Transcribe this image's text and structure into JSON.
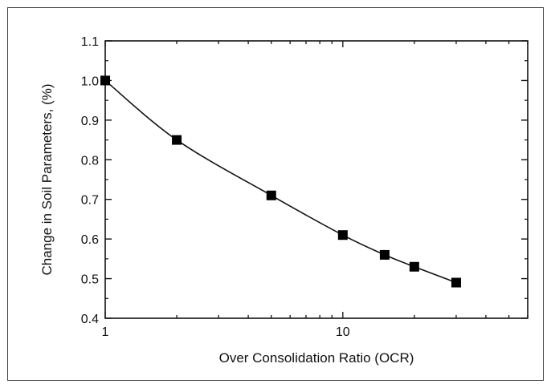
{
  "chart_data": {
    "type": "line",
    "title": "",
    "xlabel": "Over Consolidation Ratio (OCR)",
    "ylabel": "Change in Soil Parameters, (%)",
    "x_scale": "log",
    "xlim": [
      1,
      60
    ],
    "ylim": [
      0.4,
      1.1
    ],
    "x_ticks": [
      1,
      10
    ],
    "y_ticks": [
      0.4,
      0.5,
      0.6,
      0.7,
      0.8,
      0.9,
      1.0,
      1.1
    ],
    "y_tick_labels": [
      "0.4",
      "0.5",
      "0.6",
      "0.7",
      "0.8",
      "0.9",
      "1.0",
      "1.1"
    ],
    "x_tick_labels": [
      "1",
      "10"
    ],
    "grid": false,
    "legend": "none",
    "marker": "square",
    "line_color": "#111111",
    "marker_color": "#000000",
    "series": [
      {
        "x": [
          1,
          2,
          5,
          10,
          15,
          20,
          30
        ],
        "y": [
          1.0,
          0.85,
          0.71,
          0.61,
          0.56,
          0.53,
          0.49
        ]
      }
    ]
  }
}
